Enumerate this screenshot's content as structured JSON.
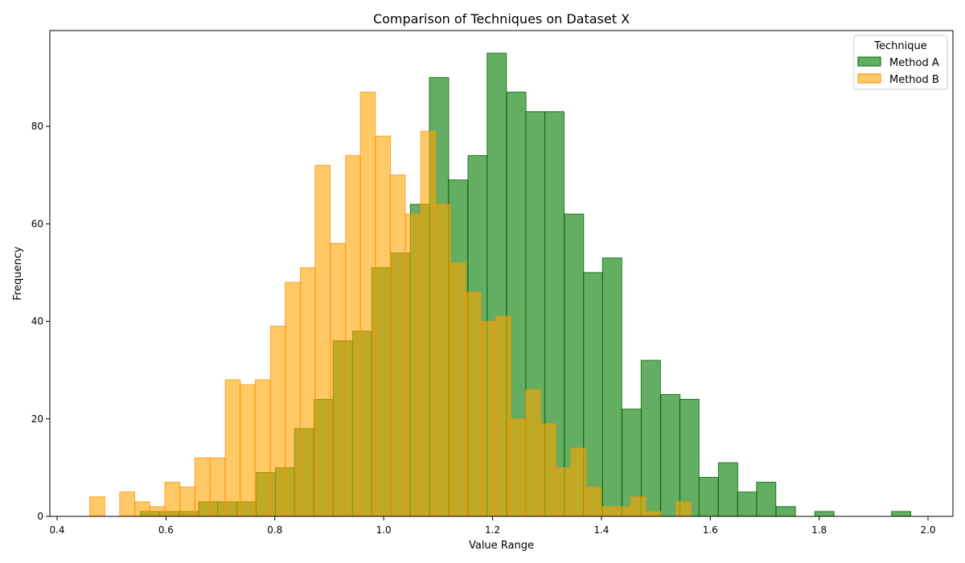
{
  "chart_data": {
    "type": "bar",
    "subtype": "overlaid-histogram",
    "title": "Comparison of Techniques on Dataset X",
    "xlabel": "Value Range",
    "ylabel": "Frequency",
    "xlim": [
      0.4,
      2.0
    ],
    "ylim": [
      0,
      100
    ],
    "xticks": [
      "0.4",
      "0.6",
      "0.8",
      "1.0",
      "1.2",
      "1.4",
      "1.6",
      "1.8",
      "2.0"
    ],
    "yticks": [
      "0",
      "20",
      "40",
      "60",
      "80"
    ],
    "grid": false,
    "legend": {
      "title": "Technique",
      "placement": "top-right"
    },
    "series": [
      {
        "name": "Method A",
        "color": "#228B22",
        "edge_color": "#006400",
        "alpha": 0.7,
        "bin_width": 0.0354,
        "bins": [
          [
            0.553,
            1
          ],
          [
            0.589,
            1
          ],
          [
            0.624,
            1
          ],
          [
            0.66,
            3
          ],
          [
            0.695,
            3
          ],
          [
            0.73,
            3
          ],
          [
            0.766,
            9
          ],
          [
            0.801,
            10
          ],
          [
            0.836,
            18
          ],
          [
            0.872,
            24
          ],
          [
            0.907,
            36
          ],
          [
            0.943,
            38
          ],
          [
            0.978,
            51
          ],
          [
            1.013,
            54
          ],
          [
            1.049,
            64
          ],
          [
            1.084,
            90
          ],
          [
            1.119,
            69
          ],
          [
            1.155,
            74
          ],
          [
            1.19,
            95
          ],
          [
            1.226,
            87
          ],
          [
            1.261,
            83
          ],
          [
            1.296,
            83
          ],
          [
            1.332,
            62
          ],
          [
            1.367,
            50
          ],
          [
            1.402,
            53
          ],
          [
            1.438,
            22
          ],
          [
            1.473,
            32
          ],
          [
            1.509,
            25
          ],
          [
            1.544,
            24
          ],
          [
            1.579,
            8
          ],
          [
            1.615,
            11
          ],
          [
            1.65,
            5
          ],
          [
            1.685,
            7
          ],
          [
            1.721,
            2
          ],
          [
            1.756,
            0
          ],
          [
            1.792,
            1
          ],
          [
            1.827,
            0
          ],
          [
            1.862,
            0
          ],
          [
            1.898,
            0
          ],
          [
            1.933,
            1
          ]
        ]
      },
      {
        "name": "Method B",
        "color": "#FFA500",
        "edge_color": "#FF8C00",
        "alpha": 0.6,
        "bin_width": 0.0276,
        "bins": [
          [
            0.46,
            4
          ],
          [
            0.488,
            0
          ],
          [
            0.515,
            5
          ],
          [
            0.543,
            3
          ],
          [
            0.57,
            2
          ],
          [
            0.598,
            7
          ],
          [
            0.626,
            6
          ],
          [
            0.653,
            12
          ],
          [
            0.681,
            12
          ],
          [
            0.709,
            28
          ],
          [
            0.736,
            27
          ],
          [
            0.764,
            28
          ],
          [
            0.792,
            39
          ],
          [
            0.819,
            48
          ],
          [
            0.847,
            51
          ],
          [
            0.874,
            72
          ],
          [
            0.902,
            56
          ],
          [
            0.93,
            74
          ],
          [
            0.957,
            87
          ],
          [
            0.985,
            78
          ],
          [
            1.012,
            70
          ],
          [
            1.04,
            62
          ],
          [
            1.068,
            79
          ],
          [
            1.095,
            64
          ],
          [
            1.123,
            52
          ],
          [
            1.151,
            46
          ],
          [
            1.178,
            40
          ],
          [
            1.206,
            41
          ],
          [
            1.233,
            20
          ],
          [
            1.261,
            26
          ],
          [
            1.289,
            19
          ],
          [
            1.316,
            10
          ],
          [
            1.344,
            14
          ],
          [
            1.372,
            6
          ],
          [
            1.399,
            2
          ],
          [
            1.427,
            2
          ],
          [
            1.454,
            4
          ],
          [
            1.482,
            1
          ],
          [
            1.51,
            0
          ],
          [
            1.537,
            3
          ]
        ]
      }
    ]
  }
}
